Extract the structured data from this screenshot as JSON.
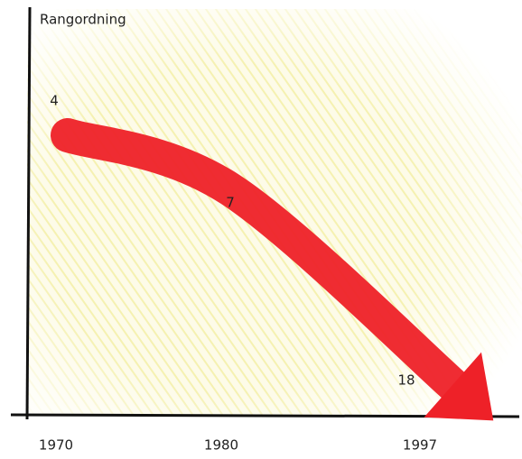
{
  "chart_data": {
    "type": "line",
    "ylabel": "Rangordning",
    "categories": [
      "1970",
      "1980",
      "1997"
    ],
    "values": [
      4,
      7,
      18
    ],
    "color": "#ee2128",
    "ylim": [
      0,
      20
    ]
  }
}
